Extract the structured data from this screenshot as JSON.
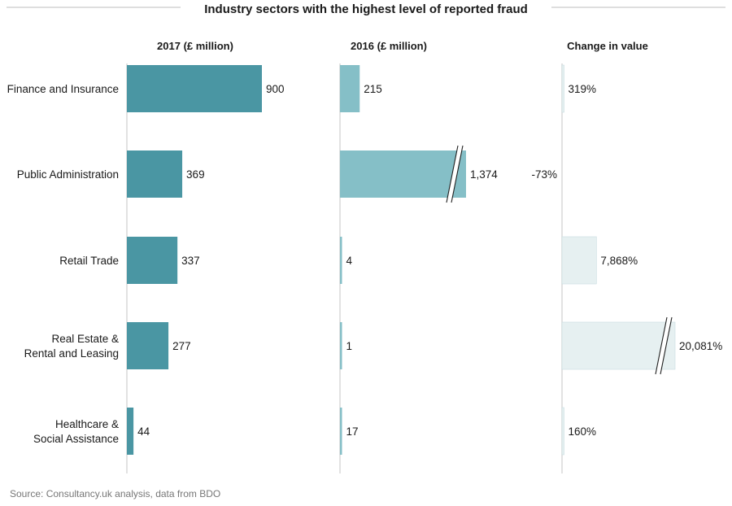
{
  "colors": {
    "bar_2017": "#4a96a3",
    "bar_2016": "#85bfc7",
    "bar_change": "#e6f0f1",
    "bar_change_border": "#c9dde0",
    "axis": "#d9d9d9",
    "title_rule": "#bdbdbd"
  },
  "footer": {
    "source": "Source: Consultancy.uk analysis, data from BDO"
  },
  "chart_data": {
    "type": "bar",
    "orientation": "horizontal",
    "title": "Industry sectors with the highest level of reported fraud",
    "categories": [
      [
        "Finance and Insurance"
      ],
      [
        "Public Administration"
      ],
      [
        "Retail Trade"
      ],
      [
        "Real Estate &",
        "Rental and Leasing"
      ],
      [
        "Healthcare &",
        "Social Assistance"
      ]
    ],
    "series": [
      {
        "name": "2017 (£ million)",
        "values": [
          900,
          369,
          337,
          277,
          44
        ],
        "labels": [
          "900",
          "369",
          "337",
          "277",
          "44"
        ],
        "scale_max": 900,
        "color_key": "bar_2017",
        "broken": [
          false,
          false,
          false,
          false,
          false
        ]
      },
      {
        "name": "2016 (£ million)",
        "values": [
          215,
          1374,
          4,
          1,
          17
        ],
        "labels": [
          "215",
          "1,374",
          "4",
          "1",
          "17"
        ],
        "scale_max": 1374,
        "color_key": "bar_2016",
        "broken": [
          false,
          true,
          false,
          false,
          false
        ]
      },
      {
        "name": "Change in value",
        "values": [
          319,
          -73,
          7868,
          20081,
          160
        ],
        "labels": [
          "319%",
          "-73%",
          "7,868%",
          "20,081%",
          "160%"
        ],
        "scale_max": 20081,
        "color_key": "bar_change",
        "broken": [
          false,
          false,
          false,
          true,
          false
        ]
      }
    ]
  }
}
